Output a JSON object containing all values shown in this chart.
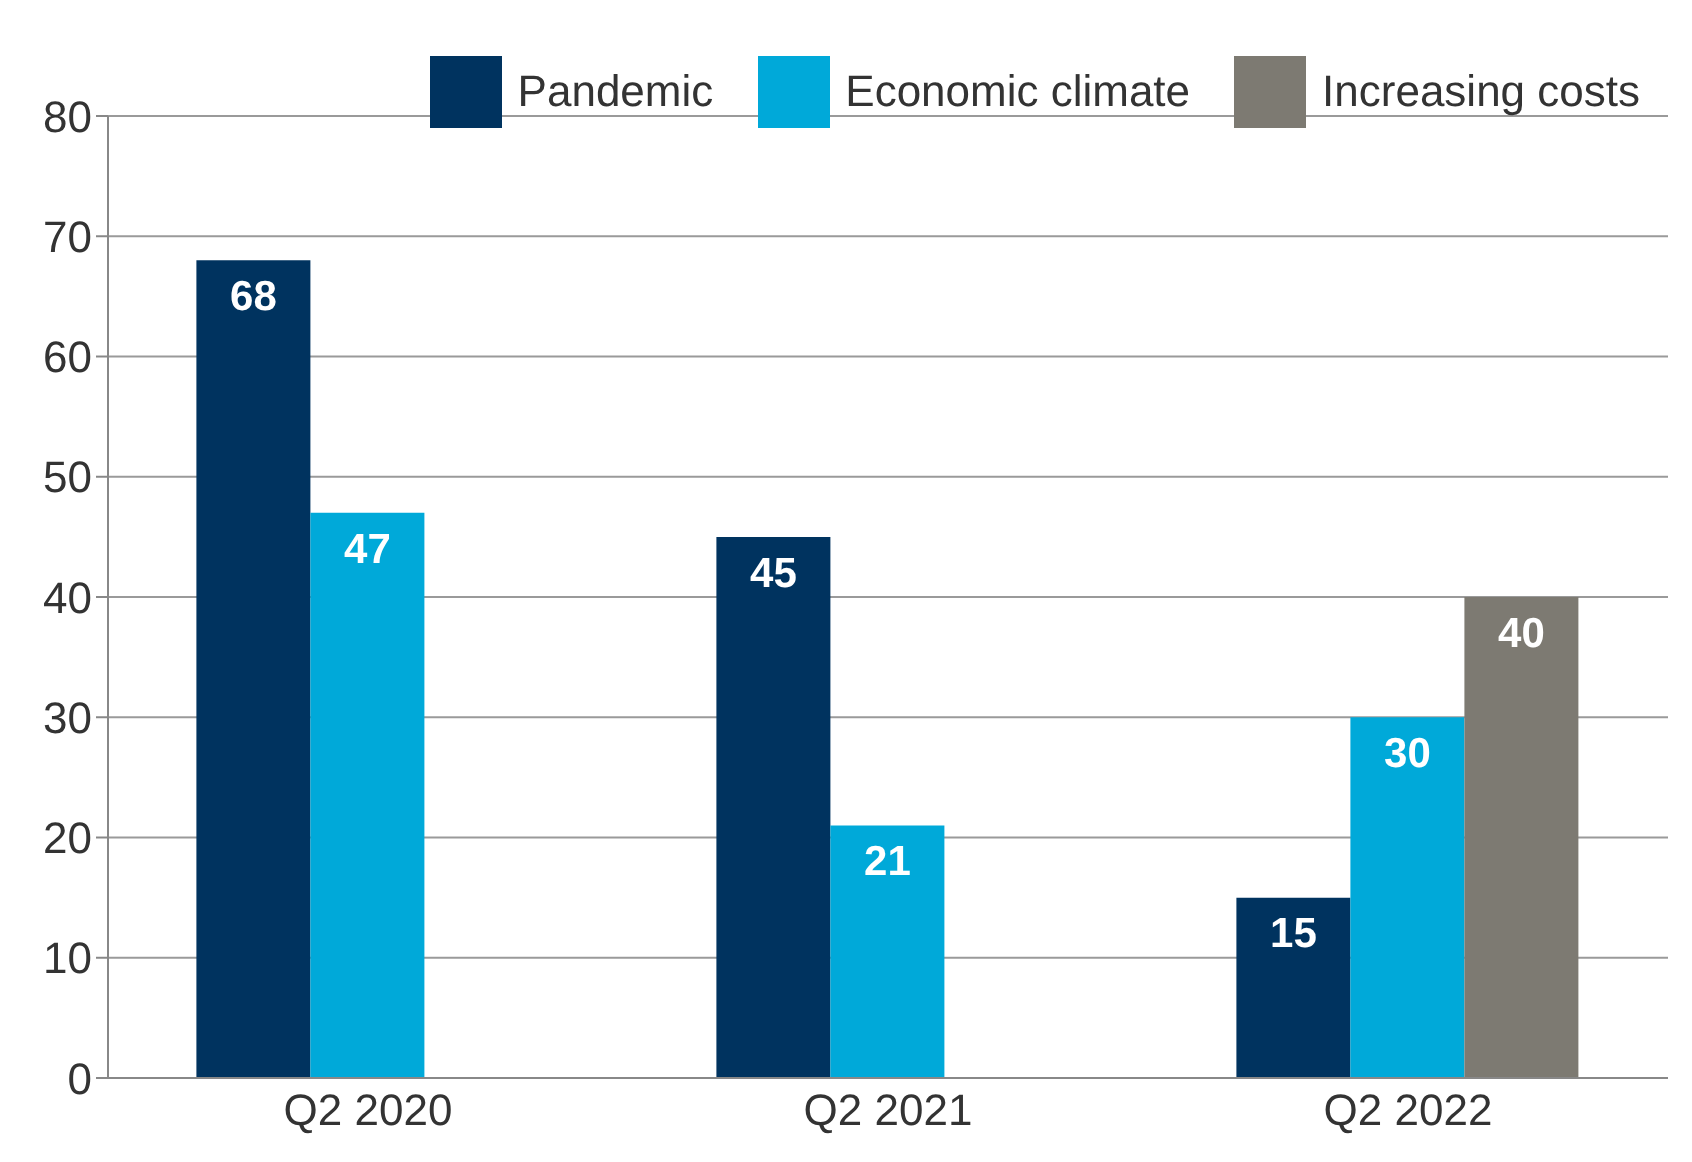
{
  "chart_data": {
    "type": "bar",
    "categories": [
      "Q2 2020",
      "Q2 2021",
      "Q2 2022"
    ],
    "series": [
      {
        "name": "Pandemic",
        "color": "#00335f",
        "values": [
          68,
          45,
          15
        ]
      },
      {
        "name": "Economic climate",
        "color": "#00a9d9",
        "values": [
          47,
          21,
          30
        ]
      },
      {
        "name": "Increasing costs",
        "color": "#7d7a72",
        "values": [
          null,
          null,
          40
        ]
      }
    ],
    "ylim": [
      0,
      80
    ],
    "yticks": [
      0,
      10,
      20,
      30,
      40,
      50,
      60,
      70,
      80
    ],
    "grid": "y",
    "legend": "top right",
    "data_labels": true
  }
}
